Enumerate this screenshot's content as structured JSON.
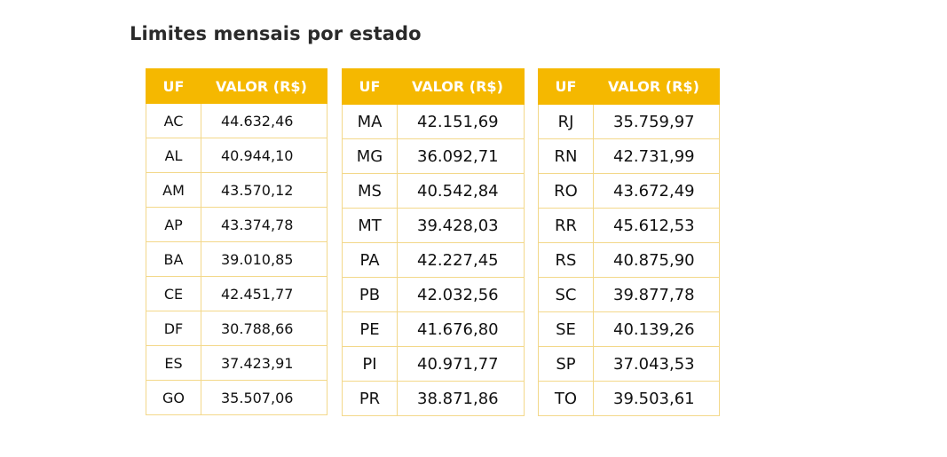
{
  "title": "Limites mensais por estado",
  "theme": {
    "header_color": "#f5b800",
    "border_color": "#f3d88a"
  },
  "headers": {
    "uf": "UF",
    "valor": "VALOR (R$)"
  },
  "tables": [
    {
      "rows": [
        {
          "uf": "AC",
          "valor": "44.632,46"
        },
        {
          "uf": "AL",
          "valor": "40.944,10"
        },
        {
          "uf": "AM",
          "valor": "43.570,12"
        },
        {
          "uf": "AP",
          "valor": "43.374,78"
        },
        {
          "uf": "BA",
          "valor": "39.010,85"
        },
        {
          "uf": "CE",
          "valor": "42.451,77"
        },
        {
          "uf": "DF",
          "valor": "30.788,66"
        },
        {
          "uf": "ES",
          "valor": "37.423,91"
        },
        {
          "uf": "GO",
          "valor": "35.507,06"
        }
      ]
    },
    {
      "rows": [
        {
          "uf": "MA",
          "valor": "42.151,69"
        },
        {
          "uf": "MG",
          "valor": "36.092,71"
        },
        {
          "uf": "MS",
          "valor": "40.542,84"
        },
        {
          "uf": "MT",
          "valor": "39.428,03"
        },
        {
          "uf": "PA",
          "valor": "42.227,45"
        },
        {
          "uf": "PB",
          "valor": "42.032,56"
        },
        {
          "uf": "PE",
          "valor": "41.676,80"
        },
        {
          "uf": "PI",
          "valor": "40.971,77"
        },
        {
          "uf": "PR",
          "valor": "38.871,86"
        }
      ]
    },
    {
      "rows": [
        {
          "uf": "RJ",
          "valor": "35.759,97"
        },
        {
          "uf": "RN",
          "valor": "42.731,99"
        },
        {
          "uf": "RO",
          "valor": "43.672,49"
        },
        {
          "uf": "RR",
          "valor": "45.612,53"
        },
        {
          "uf": "RS",
          "valor": "40.875,90"
        },
        {
          "uf": "SC",
          "valor": "39.877,78"
        },
        {
          "uf": "SE",
          "valor": "40.139,26"
        },
        {
          "uf": "SP",
          "valor": "37.043,53"
        },
        {
          "uf": "TO",
          "valor": "39.503,61"
        }
      ]
    }
  ]
}
